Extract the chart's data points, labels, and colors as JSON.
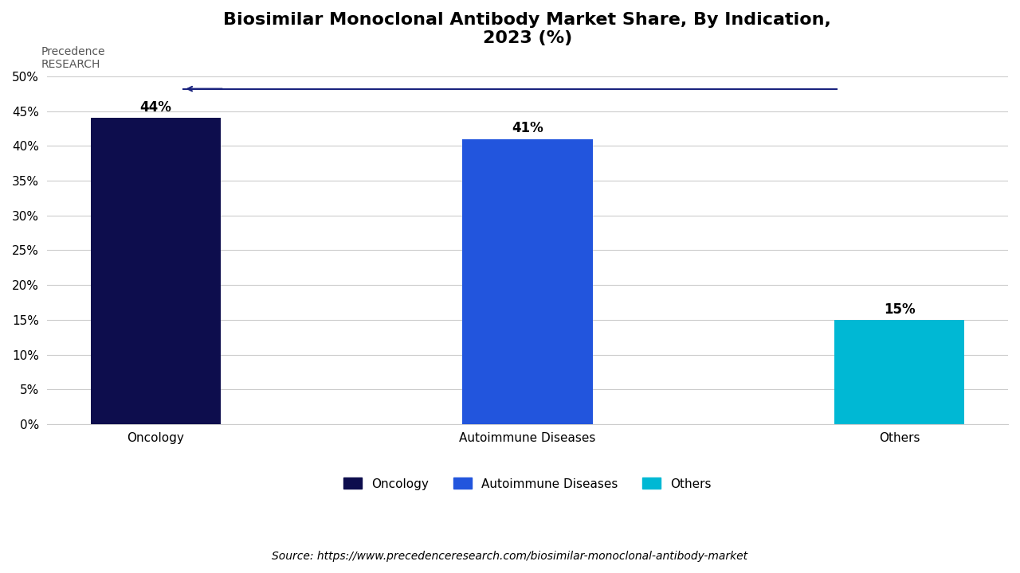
{
  "title": "Biosimilar Monoclonal Antibody Market Share, By Indication,\n2023 (%)",
  "categories": [
    "Oncology",
    "Autoimmune Diseases",
    "Others"
  ],
  "values": [
    44,
    41,
    15
  ],
  "labels": [
    "44%",
    "41%",
    "15%"
  ],
  "bar_colors": [
    "#0d0d4d",
    "#2255dd",
    "#00b8d4"
  ],
  "ylim": [
    0,
    50
  ],
  "yticks": [
    0,
    5,
    10,
    15,
    20,
    25,
    30,
    35,
    40,
    45,
    50
  ],
  "ytick_labels": [
    "0%",
    "5%",
    "10%",
    "15%",
    "20%",
    "25%",
    "30%",
    "35%",
    "40%",
    "45%",
    "50%"
  ],
  "source_text": "Source: https://www.precedenceresearch.com/biosimilar-monoclonal-antibody-market",
  "legend_labels": [
    "Oncology",
    "Autoimmune Diseases",
    "Others"
  ],
  "legend_colors": [
    "#0d0d4d",
    "#2255dd",
    "#00b8d4"
  ],
  "background_color": "#ffffff",
  "grid_color": "#cccccc",
  "title_fontsize": 16,
  "tick_fontsize": 11,
  "label_fontsize": 12,
  "source_fontsize": 10,
  "legend_fontsize": 11,
  "bar_width": 0.35
}
